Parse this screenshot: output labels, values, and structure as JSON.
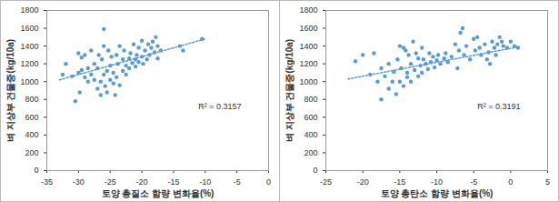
{
  "chart_data": [
    {
      "type": "scatter",
      "x_label": "토양 총질소 함량 변화율(%)",
      "y_label": "벼 지상부 건물중(kg/10a)",
      "annotation": "R² = 0.3157",
      "color": "#5b9bd5",
      "marker": "circle",
      "xlim": [
        -35,
        0
      ],
      "xticks": [
        -35,
        -30,
        -25,
        -20,
        -15,
        -10,
        -5,
        0
      ],
      "ylim": [
        0,
        1800
      ],
      "yticks": [
        0,
        200,
        400,
        600,
        800,
        1000,
        1200,
        1400,
        1600,
        1800
      ],
      "x": [
        -32.5,
        -32,
        -31,
        -30.5,
        -30,
        -30,
        -29.8,
        -29.5,
        -29.5,
        -29,
        -29,
        -28.5,
        -28.5,
        -28,
        -28,
        -27.5,
        -27.5,
        -27,
        -27,
        -26.8,
        -26.5,
        -26.5,
        -26.3,
        -26,
        -26,
        -26,
        -25.8,
        -25.5,
        -25.5,
        -25.3,
        -25,
        -25,
        -24.8,
        -24.5,
        -24.5,
        -24.2,
        -24,
        -24,
        -23.8,
        -23.5,
        -23.5,
        -23,
        -23,
        -22.8,
        -22.5,
        -22.5,
        -22,
        -22,
        -21.8,
        -21.5,
        -21.3,
        -21,
        -21,
        -20.8,
        -20.5,
        -20.5,
        -20,
        -20,
        -19.8,
        -19.5,
        -19.2,
        -19,
        -18.8,
        -18.5,
        -18.3,
        -18,
        -17.8,
        -17.5,
        -17.5,
        -17,
        -14,
        -13.5,
        -10.5
      ],
      "values": [
        1080,
        1200,
        1060,
        780,
        1100,
        1320,
        880,
        1270,
        1130,
        1050,
        1300,
        1150,
        1000,
        1350,
        1080,
        1200,
        1020,
        1150,
        920,
        1300,
        1000,
        850,
        1250,
        1400,
        1080,
        1590,
        950,
        1120,
        880,
        1350,
        1020,
        1180,
        1280,
        980,
        1100,
        850,
        1300,
        1050,
        1200,
        1400,
        960,
        1120,
        1250,
        1350,
        1180,
        1080,
        1260,
        1150,
        1320,
        1210,
        1420,
        1250,
        1170,
        1300,
        1220,
        1380,
        1280,
        1460,
        1200,
        1350,
        1250,
        1420,
        1300,
        1380,
        1450,
        1330,
        1500,
        1260,
        1400,
        1350,
        1400,
        1350,
        1480
      ],
      "trendline": {
        "x": [
          -33,
          -10
        ],
        "values": [
          1020,
          1480
        ],
        "line_style": "dotted"
      }
    },
    {
      "type": "scatter",
      "x_label": "토양 총탄소 함량 변화율(%)",
      "y_label": "벼 지상부 건물중(kg/10a)",
      "annotation": "R² = 0.3191",
      "color": "#5b9bd5",
      "marker": "circle",
      "xlim": [
        -25,
        5
      ],
      "xticks": [
        -25,
        -20,
        -15,
        -10,
        -5,
        0,
        5
      ],
      "ylim": [
        0,
        1800
      ],
      "yticks": [
        0,
        200,
        400,
        600,
        800,
        1000,
        1200,
        1400,
        1600,
        1800
      ],
      "x": [
        -21,
        -20,
        -19,
        -18.5,
        -18,
        -17.5,
        -17.5,
        -17,
        -16.5,
        -16.5,
        -16,
        -15.8,
        -15.5,
        -15.3,
        -15,
        -15,
        -14.8,
        -14.5,
        -14.5,
        -14.2,
        -14,
        -14,
        -13.8,
        -13.5,
        -13.5,
        -13.2,
        -13,
        -12.8,
        -12.5,
        -12.5,
        -12.2,
        -12,
        -12,
        -11.8,
        -11.5,
        -11.2,
        -11,
        -10.8,
        -10.5,
        -10.3,
        -10,
        -9.8,
        -9.5,
        -9,
        -8.8,
        -8.5,
        -8,
        -7.5,
        -7.2,
        -7,
        -6.8,
        -6.5,
        -6.3,
        -6,
        -5.5,
        -5,
        -4.8,
        -4.5,
        -4.2,
        -4,
        -3.5,
        -3.2,
        -3,
        -2.8,
        -2.5,
        -2.2,
        -2,
        -1.8,
        -1.5,
        -1.2,
        -1,
        -0.5,
        0,
        0.5,
        1
      ],
      "values": [
        1230,
        1300,
        1080,
        1320,
        1000,
        800,
        1150,
        1060,
        920,
        1200,
        1000,
        1110,
        860,
        1250,
        1000,
        1400,
        1150,
        1380,
        950,
        1350,
        1100,
        1050,
        1300,
        1200,
        1000,
        1450,
        1130,
        1320,
        1260,
        1060,
        1180,
        1380,
        1100,
        1250,
        1200,
        1140,
        1320,
        1220,
        1280,
        1160,
        1240,
        1300,
        1200,
        1260,
        1320,
        1220,
        1280,
        1420,
        1150,
        1350,
        1550,
        1600,
        1300,
        1400,
        1250,
        1480,
        1350,
        1500,
        1380,
        1300,
        1420,
        1250,
        1330,
        1200,
        1450,
        1380,
        1300,
        1420,
        1500,
        1450,
        1400,
        1380,
        1450,
        1400,
        1380
      ],
      "trendline": {
        "x": [
          -22,
          1
        ],
        "values": [
          1030,
          1390
        ],
        "line_style": "dotted"
      }
    }
  ]
}
